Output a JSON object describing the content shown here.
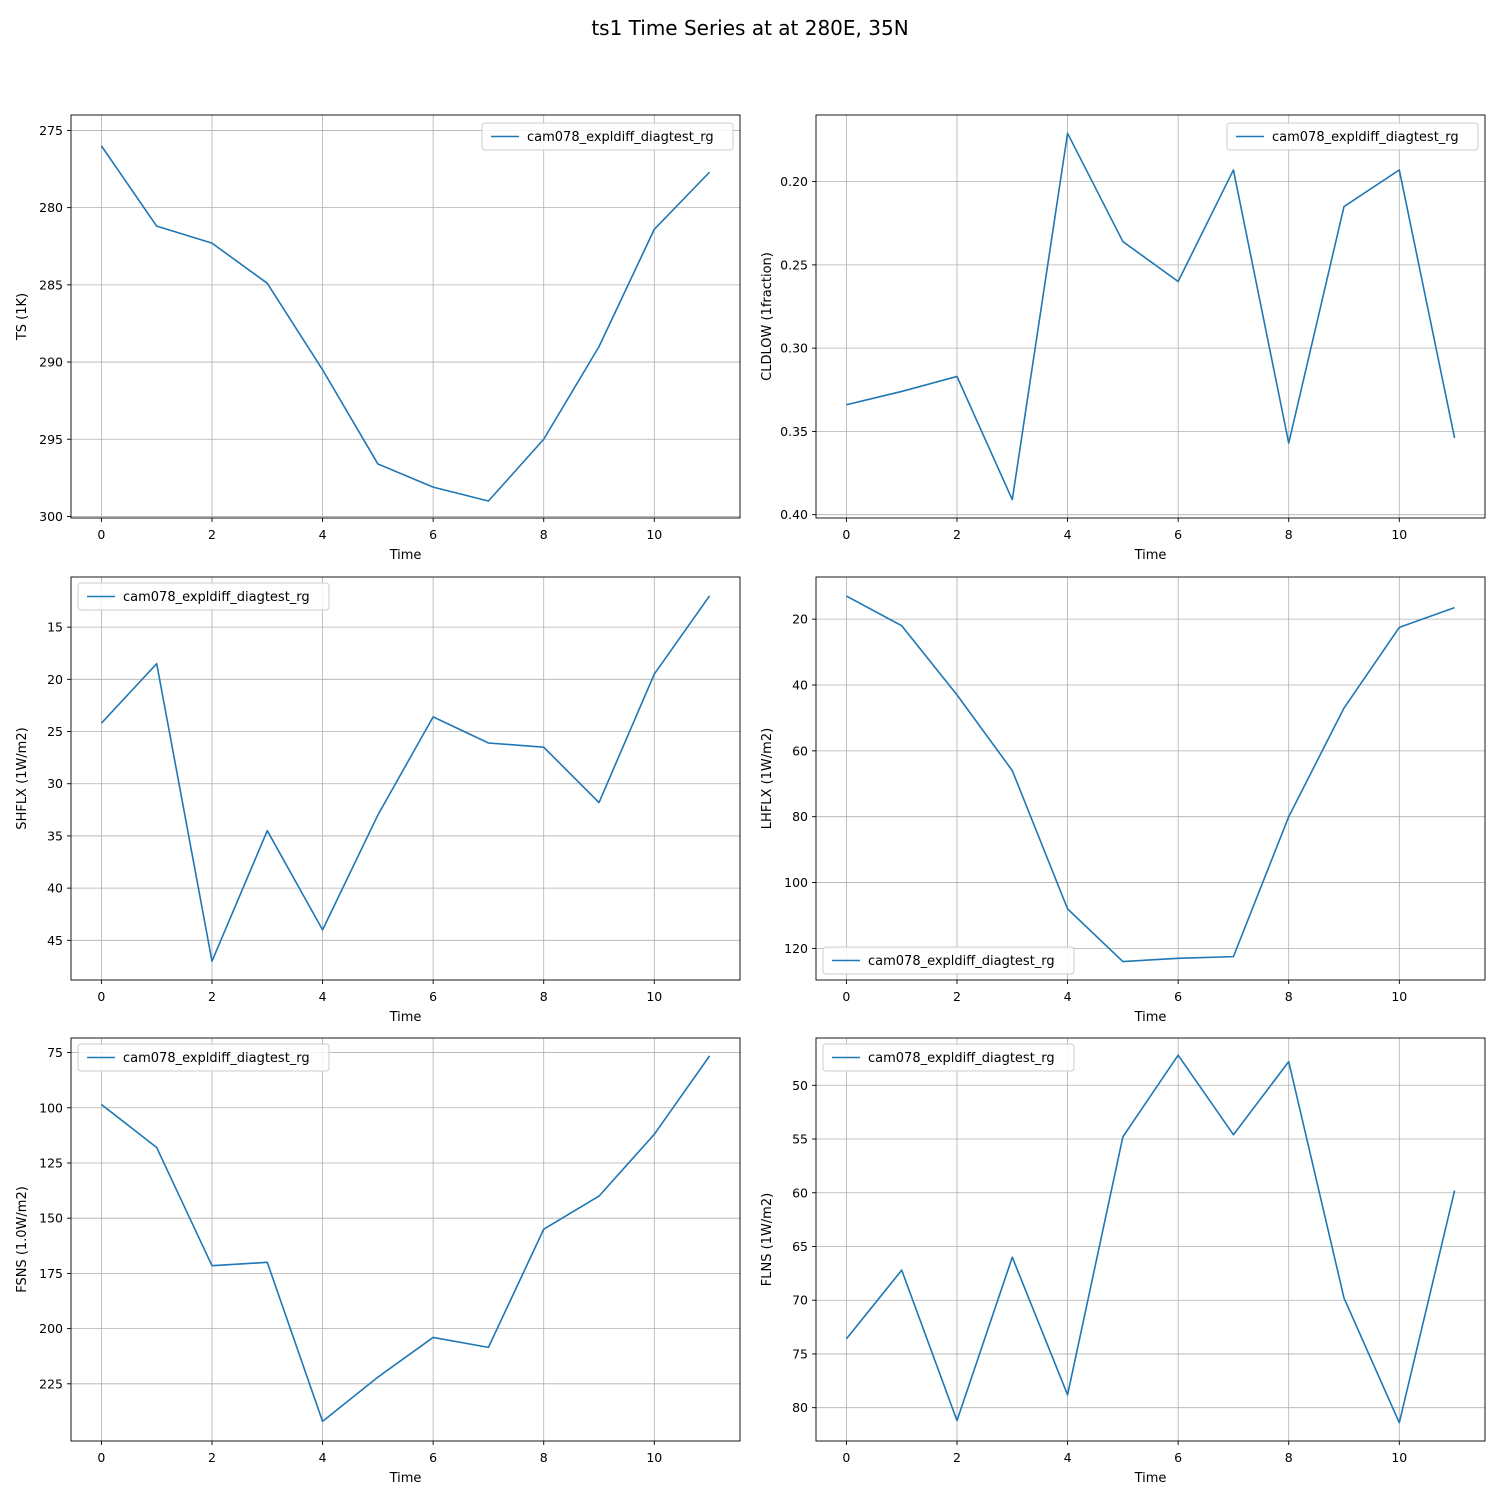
{
  "title": "ts1 Time Series at at 280E, 35N",
  "colors": {
    "series": "#1f77b4",
    "grid": "#b0b0b0",
    "axis": "#000000"
  },
  "chart_data": [
    {
      "type": "line",
      "xlabel": "Time",
      "ylabel": "TS (1K)",
      "x": [
        0,
        1,
        2,
        3,
        4,
        5,
        6,
        7,
        8,
        9,
        10,
        11
      ],
      "xlim": [
        -0.55,
        11.55
      ],
      "ylim": [
        300.1,
        274.0
      ],
      "xticks": [
        0,
        2,
        4,
        6,
        8,
        10
      ],
      "yticks": [
        275,
        280,
        285,
        290,
        295,
        300
      ],
      "y_inverted": true,
      "grid": true,
      "legend": "upper right",
      "series": [
        {
          "name": "cam078_expldiff_diagtest_rg",
          "values": [
            276.0,
            281.2,
            282.3,
            284.9,
            290.5,
            296.6,
            298.1,
            299.0,
            295.0,
            289.0,
            281.4,
            277.7
          ]
        }
      ]
    },
    {
      "type": "line",
      "xlabel": "Time",
      "ylabel": "CLDLOW (1fraction)",
      "x": [
        0,
        1,
        2,
        3,
        4,
        5,
        6,
        7,
        8,
        9,
        10,
        11
      ],
      "xlim": [
        -0.55,
        11.55
      ],
      "ylim": [
        0.402,
        0.16
      ],
      "xticks": [
        0,
        2,
        4,
        6,
        8,
        10
      ],
      "yticks": [
        0.2,
        0.25,
        0.3,
        0.35,
        0.4
      ],
      "ytick_labels": [
        "0.20",
        "0.25",
        "0.30",
        "0.35",
        "0.40"
      ],
      "y_inverted": true,
      "grid": true,
      "legend": "upper right",
      "series": [
        {
          "name": "cam078_expldiff_diagtest_rg",
          "values": [
            0.334,
            0.326,
            0.317,
            0.391,
            0.171,
            0.236,
            0.26,
            0.193,
            0.357,
            0.215,
            0.193,
            0.354
          ]
        }
      ]
    },
    {
      "type": "line",
      "xlabel": "Time",
      "ylabel": "SHFLX (1W/m2)",
      "x": [
        0,
        1,
        2,
        3,
        4,
        5,
        6,
        7,
        8,
        9,
        10,
        11
      ],
      "xlim": [
        -0.55,
        11.55
      ],
      "ylim": [
        48.8,
        10.2
      ],
      "xticks": [
        0,
        2,
        4,
        6,
        8,
        10
      ],
      "yticks": [
        15,
        20,
        25,
        30,
        35,
        40,
        45
      ],
      "y_inverted": true,
      "grid": true,
      "legend": "upper left",
      "series": [
        {
          "name": "cam078_expldiff_diagtest_rg",
          "values": [
            24.2,
            18.5,
            47.0,
            34.5,
            44.0,
            33.0,
            23.6,
            26.1,
            26.5,
            31.8,
            19.5,
            12.0
          ]
        }
      ]
    },
    {
      "type": "line",
      "xlabel": "Time",
      "ylabel": "LHFLX (1W/m2)",
      "x": [
        0,
        1,
        2,
        3,
        4,
        5,
        6,
        7,
        8,
        9,
        10,
        11
      ],
      "xlim": [
        -0.55,
        11.55
      ],
      "ylim": [
        129.6,
        7.2
      ],
      "xticks": [
        0,
        2,
        4,
        6,
        8,
        10
      ],
      "yticks": [
        20,
        40,
        60,
        80,
        100,
        120
      ],
      "y_inverted": true,
      "grid": true,
      "legend": "lower left",
      "series": [
        {
          "name": "cam078_expldiff_diagtest_rg",
          "values": [
            13.0,
            22.0,
            43.0,
            66.0,
            108.0,
            124.0,
            123.0,
            122.5,
            80.0,
            47.0,
            22.5,
            16.5
          ]
        }
      ]
    },
    {
      "type": "line",
      "xlabel": "Time",
      "ylabel": "FSNS (1.0W/m2)",
      "x": [
        0,
        1,
        2,
        3,
        4,
        5,
        6,
        7,
        8,
        9,
        10,
        11
      ],
      "xlim": [
        -0.55,
        11.55
      ],
      "ylim": [
        250.9,
        68.4
      ],
      "xticks": [
        0,
        2,
        4,
        6,
        8,
        10
      ],
      "yticks": [
        75,
        100,
        125,
        150,
        175,
        200,
        225
      ],
      "y_inverted": true,
      "grid": true,
      "legend": "upper left",
      "series": [
        {
          "name": "cam078_expldiff_diagtest_rg",
          "values": [
            98.5,
            118.0,
            171.5,
            170.0,
            242.0,
            222.0,
            204.0,
            208.5,
            155.0,
            140.0,
            112.0,
            76.5
          ]
        }
      ]
    },
    {
      "type": "line",
      "xlabel": "Time",
      "ylabel": "FLNS (1W/m2)",
      "x": [
        0,
        1,
        2,
        3,
        4,
        5,
        6,
        7,
        8,
        9,
        10,
        11
      ],
      "xlim": [
        -0.55,
        11.55
      ],
      "ylim": [
        83.1,
        45.6
      ],
      "xticks": [
        0,
        2,
        4,
        6,
        8,
        10
      ],
      "yticks": [
        50,
        55,
        60,
        65,
        70,
        75,
        80
      ],
      "y_inverted": true,
      "grid": true,
      "legend": "upper left",
      "series": [
        {
          "name": "cam078_expldiff_diagtest_rg",
          "values": [
            73.6,
            67.2,
            81.2,
            66.0,
            78.8,
            54.8,
            47.2,
            54.6,
            47.8,
            69.8,
            81.4,
            59.8
          ]
        }
      ]
    }
  ]
}
